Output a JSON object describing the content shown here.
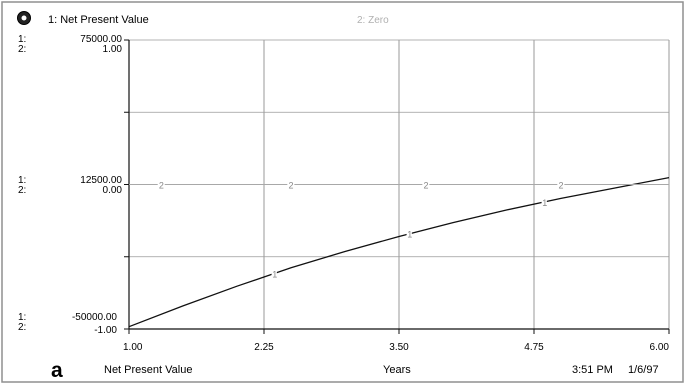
{
  "chart_data": {
    "type": "line",
    "x": [
      1.0,
      1.5,
      2.0,
      2.25,
      2.5,
      3.0,
      3.5,
      4.0,
      4.5,
      5.0,
      5.5,
      6.0
    ],
    "series": [
      {
        "name": "Net Present Value",
        "marker": "1",
        "values": [
          -49000,
          -40000,
          -31500,
          -27500,
          -23500,
          -16500,
          -10000,
          -4000,
          1500,
          6500,
          11000,
          15500
        ]
      },
      {
        "name": "Zero",
        "marker": "2",
        "values": [
          12500,
          12500,
          12500,
          12500,
          12500,
          12500,
          12500,
          12500,
          12500,
          12500,
          12500,
          12500
        ]
      }
    ],
    "x_ticks": [
      "1.00",
      "2.25",
      "3.50",
      "4.75",
      "6.00"
    ],
    "xlim": [
      1.0,
      6.0
    ],
    "ylim": [
      -50000,
      75000
    ],
    "y_axis_1_labels": [
      "75000.00",
      "12500.00",
      "-50000.00"
    ],
    "y_axis_2_labels": [
      "1.00",
      "0.00",
      "-1.00"
    ],
    "y_axis_prefix_1": "1:",
    "y_axis_prefix_2": "2:",
    "legend": [
      {
        "text": "1: Net Present Value"
      },
      {
        "text": "2: Zero"
      }
    ],
    "xlabel": "Years",
    "footer": {
      "left_label": "Net Present Value",
      "center_label": "Years",
      "time": "3:51 PM",
      "date": "1/6/97"
    },
    "grid": true,
    "colors": {
      "series1": "#111111",
      "series2": "#a8a8a8",
      "grid": "#9a9a9a",
      "axis": "#111111"
    },
    "icons": {
      "top_left": "graph-pad-icon",
      "bottom_left": "page-a-icon"
    }
  }
}
